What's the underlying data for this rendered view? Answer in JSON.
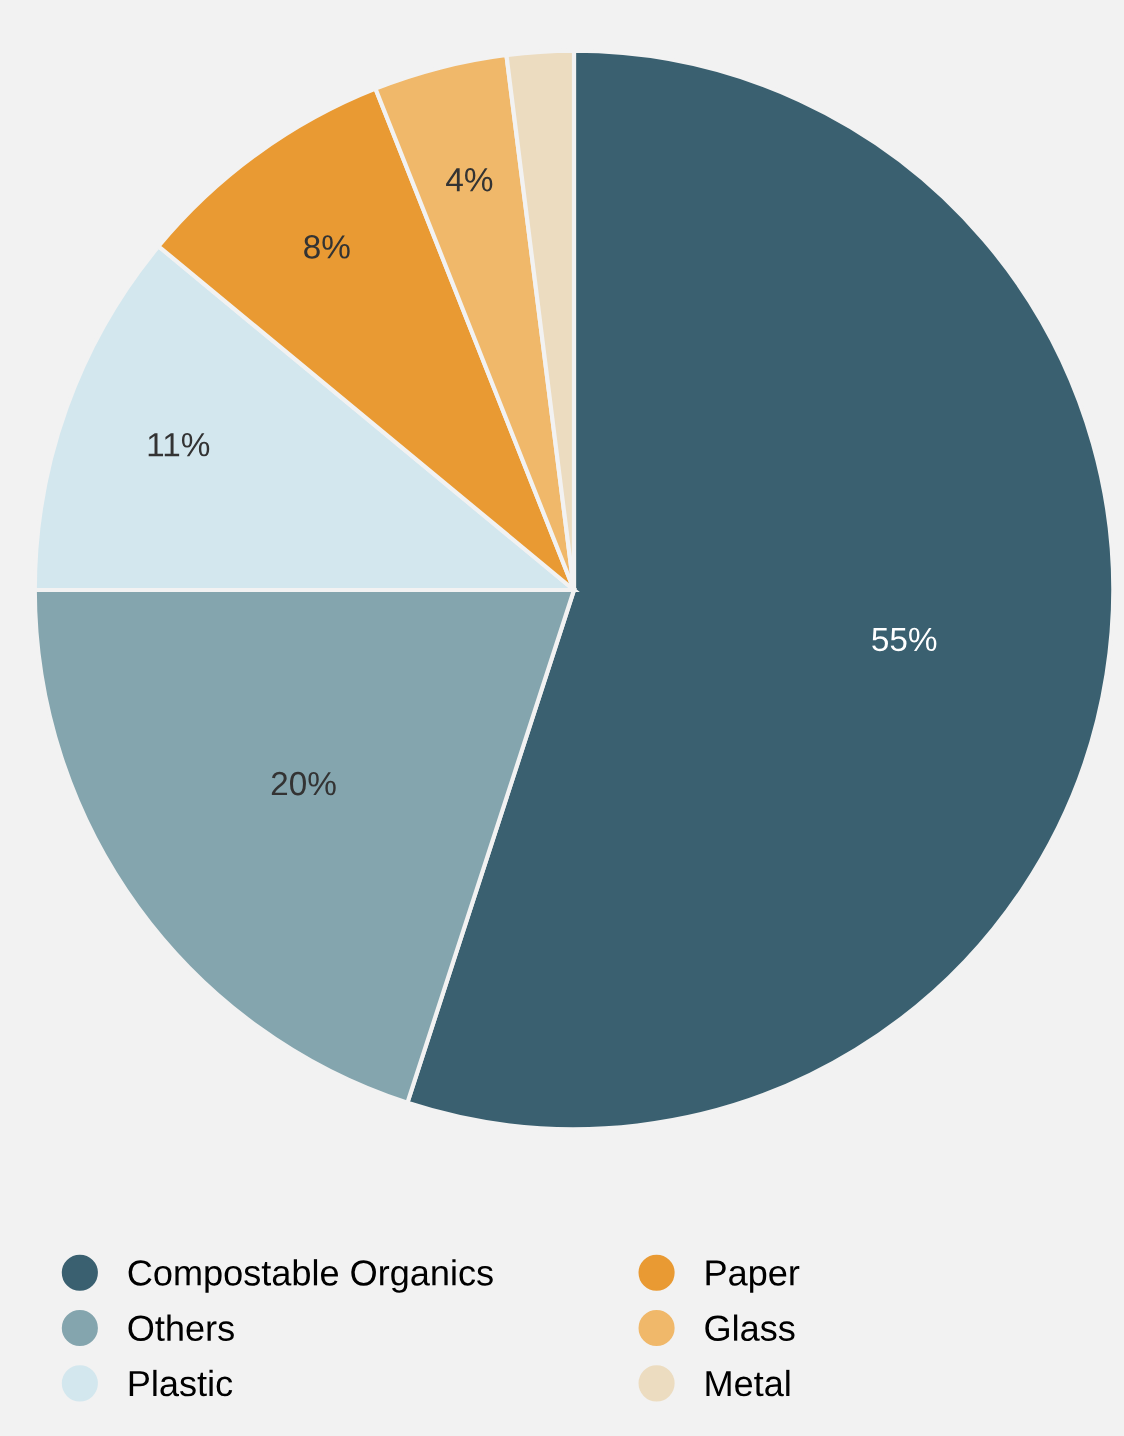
{
  "chart_data": {
    "type": "pie",
    "categories": [
      "Compostable Organics",
      "Others",
      "Plastic",
      "Paper",
      "Glass",
      "Metal"
    ],
    "values": [
      55,
      20,
      11,
      8,
      4,
      2
    ],
    "colors": [
      "#3a6070",
      "#84a5ae",
      "#d3e7ee",
      "#e99a33",
      "#f0b86a",
      "#ecdcc0"
    ],
    "value_labels": [
      "55%",
      "20%",
      "11%",
      "8%",
      "4%",
      null
    ],
    "legend": "bottom"
  }
}
